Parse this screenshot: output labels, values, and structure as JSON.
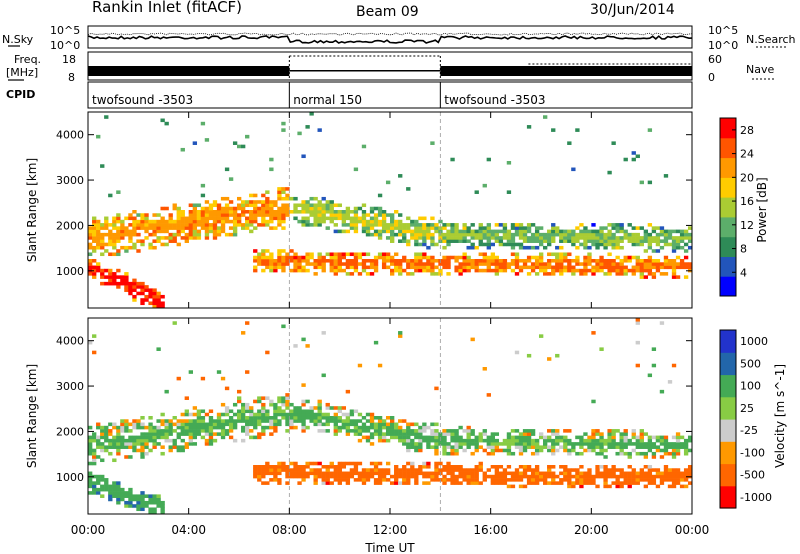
{
  "header": {
    "site": "Rankin Inlet (fitACF)",
    "beam": "Beam 09",
    "date": "30/Jun/2014"
  },
  "noise_panel": {
    "left_label": "N.Sky",
    "right_label": "N.Search",
    "left_ticks": [
      "10^5",
      "10^0"
    ],
    "right_ticks": [
      "10^5",
      "10^0"
    ]
  },
  "freq_panel": {
    "left_label_1": "Freq.",
    "left_label_2": "[MHz]",
    "left_ticks": [
      "18",
      "8"
    ],
    "right_label": "Nave",
    "right_ticks": [
      "60",
      "0"
    ]
  },
  "cpid_panel": {
    "label": "CPID",
    "segments": [
      {
        "name": "twofsound -3503",
        "start_hour": 0,
        "end_hour": 8
      },
      {
        "name": "normal 150",
        "start_hour": 8,
        "end_hour": 14
      },
      {
        "name": "twofsound -3503",
        "start_hour": 14,
        "end_hour": 24
      }
    ]
  },
  "colors": {
    "power_scale": [
      "#0000ff",
      "#2255bb",
      "#2e8b57",
      "#5cae6a",
      "#aacc33",
      "#ffcc00",
      "#ff9900",
      "#ff5500",
      "#ff0000"
    ],
    "velocity_scale": [
      "#ff0000",
      "#ff6600",
      "#ff9900",
      "#cccccc",
      "#88cc44",
      "#44aa55",
      "#2266aa",
      "#2233cc"
    ]
  },
  "chart_data": [
    {
      "type": "heatmap",
      "parameter": "power",
      "ylabel": "Slant Range [km]",
      "xlabel": "Time UT",
      "x_ticks": [
        "00:00",
        "04:00",
        "08:00",
        "12:00",
        "16:00",
        "20:00",
        "00:00"
      ],
      "y_ticks": [
        1000,
        2000,
        3000,
        4000
      ],
      "ylim": [
        180,
        4500
      ],
      "xlim_hours": [
        0,
        24
      ],
      "colorbar_label": "Power [dB]",
      "colorbar_ticks": [
        4,
        8,
        12,
        16,
        20,
        24,
        28
      ],
      "colorbar_range": [
        0,
        30
      ],
      "bands": [
        {
          "t_start": 0.0,
          "t_end": 8.0,
          "r_center_start": 1700,
          "r_center_end": 2400,
          "width": 900,
          "level": 18
        },
        {
          "t_start": 8.0,
          "t_end": 14.0,
          "r_center_start": 2400,
          "r_center_end": 1800,
          "width": 700,
          "level": 12
        },
        {
          "t_start": 14.0,
          "t_end": 24.0,
          "r_center_start": 1800,
          "r_center_end": 1700,
          "width": 600,
          "level": 10
        },
        {
          "t_start": 0.0,
          "t_end": 3.0,
          "r_center_start": 1100,
          "r_center_end": 300,
          "width": 500,
          "level": 24
        },
        {
          "t_start": 6.5,
          "t_end": 24.0,
          "r_center_start": 1200,
          "r_center_end": 1100,
          "width": 500,
          "level": 20
        }
      ]
    },
    {
      "type": "heatmap",
      "parameter": "velocity",
      "ylabel": "Slant Range [km]",
      "xlabel": "Time UT",
      "x_ticks": [
        "00:00",
        "04:00",
        "08:00",
        "12:00",
        "16:00",
        "20:00",
        "00:00"
      ],
      "y_ticks": [
        1000,
        2000,
        3000,
        4000
      ],
      "ylim": [
        180,
        4500
      ],
      "xlim_hours": [
        0,
        24
      ],
      "colorbar_label": "Velocity [m s^-1]",
      "colorbar_ticks": [
        "1000",
        "500",
        "100",
        "25",
        "-25",
        "-100",
        "-500",
        "-1000"
      ],
      "bands": [
        {
          "t_start": 0.0,
          "t_end": 8.0,
          "r_center_start": 1700,
          "r_center_end": 2400,
          "width": 900,
          "level": 0
        },
        {
          "t_start": 8.0,
          "t_end": 14.0,
          "r_center_start": 2400,
          "r_center_end": 1800,
          "width": 700,
          "level": 0
        },
        {
          "t_start": 14.0,
          "t_end": 24.0,
          "r_center_start": 1800,
          "r_center_end": 1700,
          "width": 600,
          "level": 0
        },
        {
          "t_start": 0.0,
          "t_end": 3.0,
          "r_center_start": 900,
          "r_center_end": 300,
          "width": 500,
          "level": 300
        },
        {
          "t_start": 6.5,
          "t_end": 24.0,
          "r_center_start": 1100,
          "r_center_end": 1000,
          "width": 500,
          "level": -300
        }
      ]
    }
  ]
}
